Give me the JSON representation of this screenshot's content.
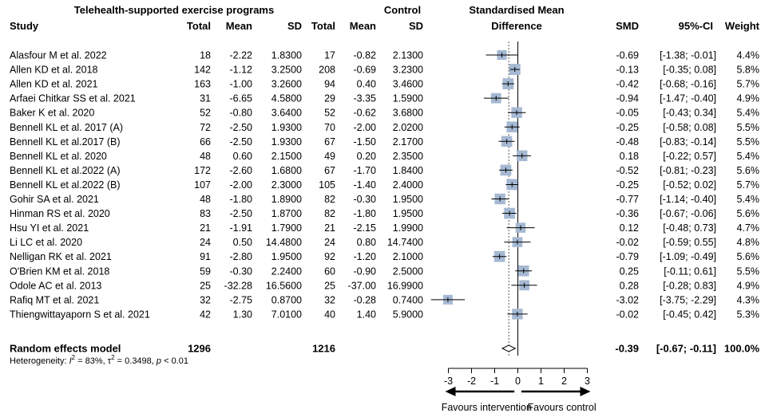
{
  "chart_data": {
    "type": "forest",
    "headers": {
      "group_telehealth": "Telehealth-supported exercise programs",
      "group_control": "Control",
      "study": "Study",
      "total": "Total",
      "mean": "Mean",
      "sd": "SD",
      "smd_line1": "Standardised Mean",
      "smd_line2": "Difference",
      "smd": "SMD",
      "ci": "95%-CI",
      "weight": "Weight"
    },
    "studies": [
      {
        "study": "Alasfour M et al. 2022",
        "t_total": "18",
        "t_mean": "-2.22",
        "t_sd": "1.8300",
        "c_total": "17",
        "c_mean": "-0.82",
        "c_sd": "2.1300",
        "smd": -0.69,
        "lo": -1.38,
        "hi": -0.01,
        "smd_text": "-0.69",
        "ci_text": "[-1.38; -0.01]",
        "weight": 4.4,
        "weight_text": "4.4%"
      },
      {
        "study": "Allen KD et al. 2018",
        "t_total": "142",
        "t_mean": "-1.12",
        "t_sd": "3.2500",
        "c_total": "208",
        "c_mean": "-0.69",
        "c_sd": "3.2300",
        "smd": -0.13,
        "lo": -0.35,
        "hi": 0.08,
        "smd_text": "-0.13",
        "ci_text": "[-0.35; 0.08]",
        "weight": 5.8,
        "weight_text": "5.8%"
      },
      {
        "study": "Allen KD et al. 2021",
        "t_total": "163",
        "t_mean": "-1.00",
        "t_sd": "3.2600",
        "c_total": "94",
        "c_mean": "0.40",
        "c_sd": "3.4600",
        "smd": -0.42,
        "lo": -0.68,
        "hi": -0.16,
        "smd_text": "-0.42",
        "ci_text": "[-0.68; -0.16]",
        "weight": 5.7,
        "weight_text": "5.7%"
      },
      {
        "study": "Arfaei Chitkar SS et al. 2021",
        "t_total": "31",
        "t_mean": "-6.65",
        "t_sd": "4.5800",
        "c_total": "29",
        "c_mean": "-3.35",
        "c_sd": "1.5900",
        "smd": -0.94,
        "lo": -1.47,
        "hi": -0.4,
        "smd_text": "-0.94",
        "ci_text": "[-1.47; -0.40]",
        "weight": 4.9,
        "weight_text": "4.9%"
      },
      {
        "study": "Baker K et al. 2020",
        "t_total": "52",
        "t_mean": "-0.80",
        "t_sd": "3.6400",
        "c_total": "52",
        "c_mean": "-0.62",
        "c_sd": "3.6800",
        "smd": -0.05,
        "lo": -0.43,
        "hi": 0.34,
        "smd_text": "-0.05",
        "ci_text": "[-0.43; 0.34]",
        "weight": 5.4,
        "weight_text": "5.4%"
      },
      {
        "study": "Bennell KL et al. 2017 (A)",
        "t_total": "72",
        "t_mean": "-2.50",
        "t_sd": "1.9300",
        "c_total": "70",
        "c_mean": "-2.00",
        "c_sd": "2.0200",
        "smd": -0.25,
        "lo": -0.58,
        "hi": 0.08,
        "smd_text": "-0.25",
        "ci_text": "[-0.58; 0.08]",
        "weight": 5.5,
        "weight_text": "5.5%"
      },
      {
        "study": "Bennell KL et al.2017 (B)",
        "t_total": "66",
        "t_mean": "-2.50",
        "t_sd": "1.9300",
        "c_total": "67",
        "c_mean": "-1.50",
        "c_sd": "2.1700",
        "smd": -0.48,
        "lo": -0.83,
        "hi": -0.14,
        "smd_text": "-0.48",
        "ci_text": "[-0.83; -0.14]",
        "weight": 5.5,
        "weight_text": "5.5%"
      },
      {
        "study": "Bennell KL et al. 2020",
        "t_total": "48",
        "t_mean": "0.60",
        "t_sd": "2.1500",
        "c_total": "49",
        "c_mean": "0.20",
        "c_sd": "2.3500",
        "smd": 0.18,
        "lo": -0.22,
        "hi": 0.57,
        "smd_text": "0.18",
        "ci_text": "[-0.22; 0.57]",
        "weight": 5.4,
        "weight_text": "5.4%"
      },
      {
        "study": "Bennell KL et al.2022 (A)",
        "t_total": "172",
        "t_mean": "-2.60",
        "t_sd": "1.6800",
        "c_total": "67",
        "c_mean": "-1.70",
        "c_sd": "1.8400",
        "smd": -0.52,
        "lo": -0.81,
        "hi": -0.23,
        "smd_text": "-0.52",
        "ci_text": "[-0.81; -0.23]",
        "weight": 5.6,
        "weight_text": "5.6%"
      },
      {
        "study": "Bennell KL et al.2022 (B)",
        "t_total": "107",
        "t_mean": "-2.00",
        "t_sd": "2.3000",
        "c_total": "105",
        "c_mean": "-1.40",
        "c_sd": "2.4000",
        "smd": -0.25,
        "lo": -0.52,
        "hi": 0.02,
        "smd_text": "-0.25",
        "ci_text": "[-0.52; 0.02]",
        "weight": 5.7,
        "weight_text": "5.7%"
      },
      {
        "study": "Gohir SA et al. 2021",
        "t_total": "48",
        "t_mean": "-1.80",
        "t_sd": "1.8900",
        "c_total": "82",
        "c_mean": "-0.30",
        "c_sd": "1.9500",
        "smd": -0.77,
        "lo": -1.14,
        "hi": -0.4,
        "smd_text": "-0.77",
        "ci_text": "[-1.14; -0.40]",
        "weight": 5.4,
        "weight_text": "5.4%"
      },
      {
        "study": "Hinman RS et al. 2020",
        "t_total": "83",
        "t_mean": "-2.50",
        "t_sd": "1.8700",
        "c_total": "82",
        "c_mean": "-1.80",
        "c_sd": "1.9500",
        "smd": -0.36,
        "lo": -0.67,
        "hi": -0.06,
        "smd_text": "-0.36",
        "ci_text": "[-0.67; -0.06]",
        "weight": 5.6,
        "weight_text": "5.6%"
      },
      {
        "study": "Hsu YI et al. 2021",
        "t_total": "21",
        "t_mean": "-1.91",
        "t_sd": "1.7900",
        "c_total": "21",
        "c_mean": "-2.15",
        "c_sd": "1.9900",
        "smd": 0.12,
        "lo": -0.48,
        "hi": 0.73,
        "smd_text": "0.12",
        "ci_text": "[-0.48; 0.73]",
        "weight": 4.7,
        "weight_text": "4.7%"
      },
      {
        "study": "Li LC et al. 2020",
        "t_total": "24",
        "t_mean": "0.50",
        "t_sd": "14.4800",
        "c_total": "24",
        "c_mean": "0.80",
        "c_sd": "14.7400",
        "smd": -0.02,
        "lo": -0.59,
        "hi": 0.55,
        "smd_text": "-0.02",
        "ci_text": "[-0.59; 0.55]",
        "weight": 4.8,
        "weight_text": "4.8%"
      },
      {
        "study": "Nelligan RK et al. 2021",
        "t_total": "91",
        "t_mean": "-2.80",
        "t_sd": "1.9500",
        "c_total": "92",
        "c_mean": "-1.20",
        "c_sd": "2.1000",
        "smd": -0.79,
        "lo": -1.09,
        "hi": -0.49,
        "smd_text": "-0.79",
        "ci_text": "[-1.09; -0.49]",
        "weight": 5.6,
        "weight_text": "5.6%"
      },
      {
        "study": "O'Brien KM et al. 2018",
        "t_total": "59",
        "t_mean": "-0.30",
        "t_sd": "2.2400",
        "c_total": "60",
        "c_mean": "-0.90",
        "c_sd": "2.5000",
        "smd": 0.25,
        "lo": -0.11,
        "hi": 0.61,
        "smd_text": "0.25",
        "ci_text": "[-0.11; 0.61]",
        "weight": 5.5,
        "weight_text": "5.5%"
      },
      {
        "study": "Odole AC et al. 2013",
        "t_total": "25",
        "t_mean": "-32.28",
        "t_sd": "16.5600",
        "c_total": "25",
        "c_mean": "-37.00",
        "c_sd": "16.9900",
        "smd": 0.28,
        "lo": -0.28,
        "hi": 0.83,
        "smd_text": "0.28",
        "ci_text": "[-0.28; 0.83]",
        "weight": 4.9,
        "weight_text": "4.9%"
      },
      {
        "study": "Rafiq MT et al. 2021",
        "t_total": "32",
        "t_mean": "-2.75",
        "t_sd": "0.8700",
        "c_total": "32",
        "c_mean": "-0.28",
        "c_sd": "0.7400",
        "smd": -3.02,
        "lo": -3.75,
        "hi": -2.29,
        "smd_text": "-3.02",
        "ci_text": "[-3.75; -2.29]",
        "weight": 4.3,
        "weight_text": "4.3%"
      },
      {
        "study": "Thiengwittayaporn S et al. 2021",
        "t_total": "42",
        "t_mean": "1.30",
        "t_sd": "7.0100",
        "c_total": "40",
        "c_mean": "1.40",
        "c_sd": "5.9000",
        "smd": -0.02,
        "lo": -0.45,
        "hi": 0.42,
        "smd_text": "-0.02",
        "ci_text": "[-0.45; 0.42]",
        "weight": 5.3,
        "weight_text": "5.3%"
      }
    ],
    "pooled": {
      "label": "Random effects model",
      "t_total": "1296",
      "c_total": "1216",
      "smd": -0.39,
      "lo": -0.67,
      "hi": -0.11,
      "smd_text": "-0.39",
      "ci_text": "[-0.67; -0.11]",
      "weight_text": "100.0%"
    },
    "heterogeneity": {
      "prefix": "Heterogeneity: ",
      "i2_sym": "I",
      "i2_sup": "2",
      "i2_val": " = 83%, ",
      "tau_sym": "τ",
      "tau_sup": "2",
      "tau_val": " = 0.3498, ",
      "p_sym": "p",
      "p_val": " < 0.01"
    },
    "x_axis": {
      "range": [
        -3,
        3
      ],
      "ticks": [
        -3,
        -2,
        -1,
        0,
        1,
        2,
        3
      ],
      "tick_labels": [
        "-3",
        "-2",
        "-1",
        "0",
        "1",
        "2",
        "3"
      ],
      "favours_left": "Favours intervention",
      "favours_right": "Favours control"
    },
    "colors": {
      "square": "#a6b9d3",
      "ink": "#000000",
      "reference": "#555555"
    }
  }
}
